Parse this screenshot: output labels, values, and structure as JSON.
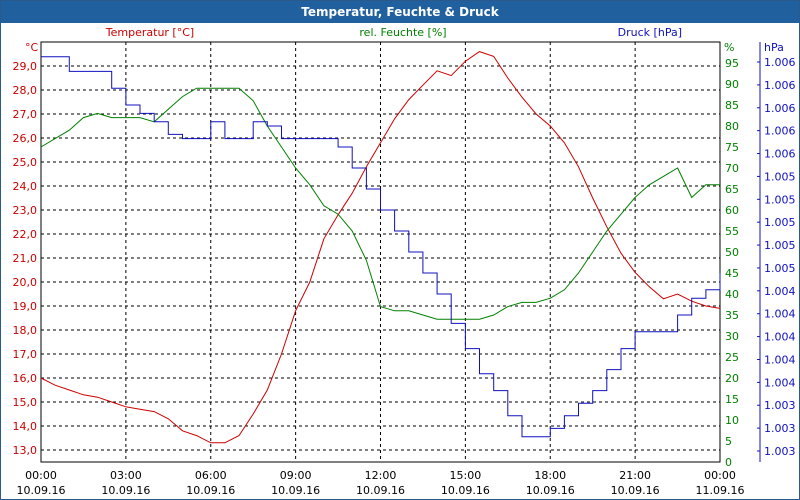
{
  "chart_data": {
    "type": "line",
    "title": "Temperatur, Feuchte & Druck",
    "x_tick_labels": [
      {
        "time": "00:00",
        "date": "10.09.16"
      },
      {
        "time": "03:00",
        "date": "10.09.16"
      },
      {
        "time": "06:00",
        "date": "10.09.16"
      },
      {
        "time": "09:00",
        "date": "10.09.16"
      },
      {
        "time": "12:00",
        "date": "10.09.16"
      },
      {
        "time": "15:00",
        "date": "10.09.16"
      },
      {
        "time": "18:00",
        "date": "10.09.16"
      },
      {
        "time": "21:00",
        "date": "10.09.16"
      },
      {
        "time": "00:00",
        "date": "11.09.16"
      }
    ],
    "xlim_hours": [
      0,
      24
    ],
    "grid": true,
    "axes": {
      "temperature": {
        "unit": "°C",
        "ylim": [
          12.5,
          30.0
        ],
        "ticks": [
          "13,0",
          "14,0",
          "15,0",
          "16,0",
          "17,0",
          "18,0",
          "19,0",
          "20,0",
          "21,0",
          "22,0",
          "23,0",
          "24,0",
          "25,0",
          "26,0",
          "27,0",
          "28,0",
          "29,0"
        ]
      },
      "humidity": {
        "unit": "%",
        "ylim": [
          0,
          100
        ],
        "ticks": [
          "0",
          "5",
          "10",
          "15",
          "20",
          "25",
          "30",
          "35",
          "40",
          "45",
          "50",
          "55",
          "60",
          "65",
          "70",
          "75",
          "80",
          "85",
          "90",
          "95"
        ]
      },
      "pressure": {
        "unit": "hPa",
        "ticks": [
          "1.003",
          "1.003",
          "1.003",
          "1.004",
          "1.004",
          "1.004",
          "1.004",
          "1.004",
          "1.005",
          "1.005",
          "1.005",
          "1.005",
          "1.005",
          "1.006",
          "1.006",
          "1.006",
          "1.006",
          "1.006"
        ]
      }
    },
    "series": [
      {
        "name": "Temperatur [°C]",
        "axis": "temperature",
        "color": "#cc0000",
        "x": [
          0,
          0.5,
          1,
          1.5,
          2,
          2.5,
          3,
          3.5,
          4,
          4.5,
          5,
          5.5,
          6,
          6.5,
          7,
          7.5,
          8,
          8.5,
          9,
          9.5,
          10,
          10.5,
          11,
          11.5,
          12,
          12.5,
          13,
          13.5,
          14,
          14.5,
          15,
          15.5,
          16,
          16.5,
          17,
          17.5,
          18,
          18.5,
          19,
          19.5,
          20,
          20.5,
          21,
          21.5,
          22,
          22.5,
          23,
          23.5,
          24
        ],
        "values": [
          16.0,
          15.7,
          15.5,
          15.3,
          15.2,
          15.0,
          14.8,
          14.7,
          14.6,
          14.3,
          13.8,
          13.6,
          13.3,
          13.3,
          13.6,
          14.5,
          15.5,
          17.0,
          18.8,
          20.0,
          21.8,
          22.8,
          23.7,
          24.8,
          25.8,
          26.8,
          27.6,
          28.2,
          28.8,
          28.6,
          29.2,
          29.6,
          29.4,
          28.5,
          27.7,
          27.0,
          26.5,
          25.8,
          24.8,
          23.5,
          22.3,
          21.2,
          20.4,
          19.8,
          19.3,
          19.5,
          19.2,
          19.0,
          18.9
        ]
      },
      {
        "name": "rel. Feuchte [%]",
        "axis": "humidity",
        "color": "#008000",
        "x": [
          0,
          0.5,
          1,
          1.5,
          2,
          2.5,
          3,
          3.5,
          4,
          4.5,
          5,
          5.5,
          6,
          6.5,
          7,
          7.5,
          8,
          8.5,
          9,
          9.5,
          10,
          10.5,
          11,
          11.5,
          12,
          12.5,
          13,
          13.5,
          14,
          14.5,
          15,
          15.5,
          16,
          16.5,
          17,
          17.5,
          18,
          18.5,
          19,
          19.5,
          20,
          20.5,
          21,
          21.5,
          22,
          22.5,
          23,
          23.5,
          24
        ],
        "values": [
          75,
          77,
          79,
          82,
          83,
          82,
          82,
          82,
          81,
          84,
          87,
          89,
          89,
          89,
          89,
          86,
          80,
          75,
          70,
          66,
          61,
          59,
          55,
          48,
          37,
          36,
          36,
          35,
          34,
          34,
          34,
          34,
          35,
          37,
          38,
          38,
          39,
          41,
          45,
          50,
          55,
          59,
          63,
          66,
          68,
          70,
          63,
          66,
          66
        ]
      },
      {
        "name": "Druck [hPa]",
        "axis": "pressure",
        "color": "#1010c0",
        "scale_label_range": [
          1.003,
          1.006
        ],
        "x": [
          0,
          0.5,
          1,
          1.5,
          2,
          2.5,
          3,
          3.5,
          4,
          4.5,
          5,
          5.5,
          6,
          6.5,
          7,
          7.5,
          8,
          8.5,
          9,
          9.5,
          10,
          10.5,
          11,
          11.5,
          12,
          12.5,
          13,
          13.5,
          14,
          14.5,
          15,
          15.5,
          16,
          16.5,
          17,
          17.5,
          18,
          18.5,
          19,
          19.5,
          20,
          20.5,
          21,
          21.5,
          22,
          22.5,
          23,
          23.5,
          24
        ],
        "values": [
          96.5,
          96.5,
          93,
          93,
          93,
          89,
          85,
          83,
          81,
          78,
          77,
          77,
          81,
          77,
          77,
          81,
          80,
          77,
          77,
          77,
          77,
          75,
          70,
          65,
          60,
          55,
          50,
          45,
          40,
          33,
          27,
          21,
          17,
          11,
          6,
          6,
          8,
          11,
          14,
          17,
          22,
          27,
          31,
          31,
          31,
          35,
          39,
          41,
          45
        ]
      }
    ],
    "legend": [
      "Temperatur [°C]",
      "rel. Feuchte [%]",
      "Druck [hPa]"
    ]
  }
}
